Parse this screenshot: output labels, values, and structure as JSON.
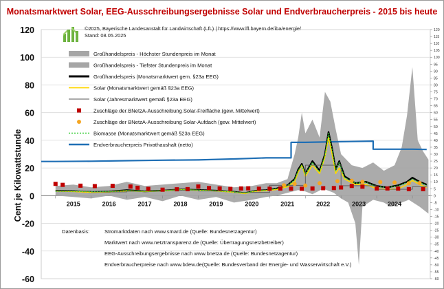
{
  "title": "Monatsmarktwert Solar, EEG-Ausschreibungsergebnisse Solar und Endverbraucherpreis - 2015 bis heute",
  "credit": {
    "line1": "©2025, Bayerische Landesanstalt für Landwirtschaft (LfL)  |  https://www.lfl.bayern.de/iba/energie/",
    "line2": "Stand: 08.05.2025"
  },
  "datenbasis": {
    "label": "Datenbasis:",
    "lines": [
      "Stromarktdaten nach www.smard.de (Quelle: Bundesnetzagentur)",
      "Marktwert nach www.netztransparenz.de (Quelle: Übertragungsnetzbetreiber)",
      "EEG-Ausschreibungsergebnisse nach www.bnetza.de (Quelle: Bundesnetzagentur)",
      "Endverbraucherpreise nach www.bdew.de(Quelle: Bundesverband der Energie- und Wasserwirtschaft e.V.)"
    ]
  },
  "colors": {
    "title": "#c00000",
    "band": "#a6a6a6",
    "grosshandel": "#000000",
    "solar": "#ffd700",
    "solar_jahr": "#555555",
    "freiflaeche": "#c00000",
    "aufdach": "#f5a623",
    "biomasse": "#33cc33",
    "endverbraucher": "#1f6fb5"
  },
  "chart_data": {
    "type": "line",
    "ylabel": "Cent je Kilowattstunde",
    "ylim": [
      -60,
      120
    ],
    "yticks": [
      "120",
      "100",
      "80",
      "60",
      "40",
      "20",
      "0",
      "-20",
      "-40",
      "-60"
    ],
    "yticks_right": [
      "120",
      "115",
      "110",
      "105",
      "100",
      "95",
      "90",
      "85",
      "80",
      "75",
      "70",
      "65",
      "60",
      "55",
      "50",
      "45",
      "40",
      "35",
      "30",
      "25",
      "20",
      "15",
      "10",
      "5",
      "0",
      "-5",
      "-10",
      "-15",
      "-20",
      "-25",
      "-30",
      "-35",
      "-40",
      "-45",
      "-50",
      "-55",
      "-60"
    ],
    "x_categories": [
      "2015",
      "2016",
      "2017",
      "2018",
      "2019",
      "2020",
      "2021",
      "2022",
      "2023",
      "2024"
    ],
    "xlim": [
      2014.6,
      2025.5
    ],
    "grid": true,
    "legend_position": "top-left",
    "legend": [
      "Großhandelspreis - Höchster Stundenpreis im Monat",
      "Großhandelspreis - Tiefster Stundenpreis im Monat",
      "Großhandelspreis (Monatsmarktwert gem. §23a EEG)",
      "Solar (Monatsmarktwert gemäß §23a EEG)",
      "Solar (Jahresmarktwert gemäß §23a EEG)",
      "Zuschläge der BNetzA-Ausschreibung Solar-Freifläche (gew. Mittelwert)",
      "Zuschläge der BNetzA-Ausschreibung Solar-Aufdach (gew. Mittelwert)",
      "Biomasse (Monatsmarktwert gemäß §23a EEG)",
      "Endverbraucherpreis Privathaushalt (netto)"
    ],
    "band_high": [
      [
        2015.0,
        7
      ],
      [
        2015.5,
        8
      ],
      [
        2016.0,
        6
      ],
      [
        2016.5,
        7
      ],
      [
        2017.0,
        10
      ],
      [
        2017.5,
        7
      ],
      [
        2018.0,
        8
      ],
      [
        2018.5,
        9
      ],
      [
        2019.0,
        10
      ],
      [
        2019.5,
        8
      ],
      [
        2020.0,
        6
      ],
      [
        2020.5,
        7
      ],
      [
        2020.9,
        9
      ],
      [
        2021.2,
        9
      ],
      [
        2021.5,
        12
      ],
      [
        2021.7,
        30
      ],
      [
        2021.8,
        42
      ],
      [
        2021.9,
        60
      ],
      [
        2022.0,
        45
      ],
      [
        2022.2,
        55
      ],
      [
        2022.4,
        42
      ],
      [
        2022.55,
        75
      ],
      [
        2022.7,
        68
      ],
      [
        2022.85,
        48
      ],
      [
        2023.0,
        30
      ],
      [
        2023.3,
        22
      ],
      [
        2023.6,
        20
      ],
      [
        2023.9,
        24
      ],
      [
        2024.2,
        18
      ],
      [
        2024.5,
        22
      ],
      [
        2024.7,
        35
      ],
      [
        2024.85,
        58
      ],
      [
        2025.0,
        93
      ],
      [
        2025.15,
        40
      ],
      [
        2025.3,
        32
      ],
      [
        2025.45,
        26
      ]
    ],
    "band_low": [
      [
        2015.0,
        0
      ],
      [
        2015.5,
        -1
      ],
      [
        2016.0,
        -2
      ],
      [
        2016.5,
        0
      ],
      [
        2017.0,
        -3
      ],
      [
        2017.5,
        -1
      ],
      [
        2018.0,
        -4
      ],
      [
        2018.5,
        0
      ],
      [
        2019.0,
        -3
      ],
      [
        2019.5,
        -1
      ],
      [
        2020.0,
        -5
      ],
      [
        2020.5,
        -3
      ],
      [
        2020.9,
        -1
      ],
      [
        2021.2,
        0
      ],
      [
        2021.5,
        2
      ],
      [
        2021.8,
        4
      ],
      [
        2022.0,
        3
      ],
      [
        2022.2,
        1
      ],
      [
        2022.5,
        5
      ],
      [
        2022.8,
        2
      ],
      [
        2023.0,
        -2
      ],
      [
        2023.2,
        -5
      ],
      [
        2023.4,
        -20
      ],
      [
        2023.5,
        -50
      ],
      [
        2023.6,
        -8
      ],
      [
        2023.9,
        -3
      ],
      [
        2024.2,
        -5
      ],
      [
        2024.4,
        -8
      ],
      [
        2024.6,
        -6
      ],
      [
        2024.9,
        -3
      ],
      [
        2025.2,
        -8
      ],
      [
        2025.45,
        -13
      ]
    ],
    "grosshandel": [
      [
        2015.0,
        3.5
      ],
      [
        2015.5,
        3.3
      ],
      [
        2016.0,
        2.6
      ],
      [
        2016.5,
        2.9
      ],
      [
        2017.0,
        4.0
      ],
      [
        2017.5,
        3.1
      ],
      [
        2018.0,
        3.6
      ],
      [
        2018.5,
        4.5
      ],
      [
        2019.0,
        4.1
      ],
      [
        2019.5,
        3.6
      ],
      [
        2020.0,
        2.8
      ],
      [
        2020.3,
        1.8
      ],
      [
        2020.6,
        3.5
      ],
      [
        2020.9,
        4.0
      ],
      [
        2021.2,
        5.2
      ],
      [
        2021.5,
        7.5
      ],
      [
        2021.7,
        12
      ],
      [
        2021.8,
        19
      ],
      [
        2021.9,
        23
      ],
      [
        2022.0,
        16
      ],
      [
        2022.2,
        25
      ],
      [
        2022.4,
        18
      ],
      [
        2022.55,
        30
      ],
      [
        2022.65,
        46
      ],
      [
        2022.75,
        34
      ],
      [
        2022.85,
        19
      ],
      [
        2022.95,
        25
      ],
      [
        2023.1,
        14
      ],
      [
        2023.4,
        9
      ],
      [
        2023.7,
        10
      ],
      [
        2024.0,
        7
      ],
      [
        2024.3,
        6
      ],
      [
        2024.6,
        7.5
      ],
      [
        2024.85,
        10
      ],
      [
        2025.0,
        13
      ],
      [
        2025.2,
        10
      ],
      [
        2025.4,
        8
      ]
    ],
    "solar": [
      [
        2015.0,
        3.3
      ],
      [
        2015.5,
        3.0
      ],
      [
        2016.0,
        2.4
      ],
      [
        2016.5,
        2.7
      ],
      [
        2017.0,
        3.5
      ],
      [
        2017.5,
        3.0
      ],
      [
        2018.0,
        3.4
      ],
      [
        2018.5,
        4.3
      ],
      [
        2019.0,
        3.8
      ],
      [
        2019.5,
        3.4
      ],
      [
        2020.0,
        2.5
      ],
      [
        2020.3,
        1.5
      ],
      [
        2020.6,
        3.2
      ],
      [
        2020.9,
        3.6
      ],
      [
        2021.2,
        4.5
      ],
      [
        2021.5,
        6.5
      ],
      [
        2021.7,
        10
      ],
      [
        2021.8,
        17
      ],
      [
        2021.9,
        22
      ],
      [
        2022.0,
        14
      ],
      [
        2022.2,
        22
      ],
      [
        2022.4,
        16
      ],
      [
        2022.55,
        28
      ],
      [
        2022.65,
        42
      ],
      [
        2022.75,
        30
      ],
      [
        2022.85,
        16
      ],
      [
        2022.95,
        20
      ],
      [
        2023.1,
        12
      ],
      [
        2023.4,
        8
      ],
      [
        2023.7,
        8
      ],
      [
        2024.0,
        5
      ],
      [
        2024.3,
        4.5
      ],
      [
        2024.6,
        5
      ],
      [
        2024.85,
        8
      ],
      [
        2025.0,
        11
      ],
      [
        2025.2,
        8
      ],
      [
        2025.4,
        6
      ]
    ],
    "solar_jahr": [
      [
        2015.0,
        3.3
      ],
      [
        2016.0,
        3.3
      ],
      [
        2016.0,
        2.7
      ],
      [
        2017.0,
        2.7
      ],
      [
        2017.0,
        3.2
      ],
      [
        2018.0,
        3.2
      ],
      [
        2018.0,
        4.0
      ],
      [
        2019.0,
        4.0
      ],
      [
        2019.0,
        3.4
      ],
      [
        2020.0,
        3.4
      ],
      [
        2020.0,
        2.3
      ],
      [
        2021.0,
        2.3
      ],
      [
        2021.0,
        7.5
      ],
      [
        2022.0,
        7.5
      ],
      [
        2022.0,
        22
      ],
      [
        2023.0,
        22
      ],
      [
        2023.0,
        7.2
      ],
      [
        2024.0,
        7.2
      ],
      [
        2024.0,
        4.6
      ],
      [
        2025.0,
        4.6
      ],
      [
        2025.0,
        6.5
      ],
      [
        2025.4,
        6.5
      ]
    ],
    "biomasse": [
      [
        2015.0,
        3.2
      ],
      [
        2015.5,
        3.2
      ],
      [
        2016.0,
        2.8
      ],
      [
        2016.5,
        2.9
      ],
      [
        2017.0,
        3.6
      ],
      [
        2017.5,
        3.1
      ],
      [
        2018.0,
        3.5
      ],
      [
        2018.5,
        4.4
      ],
      [
        2019.0,
        4.0
      ],
      [
        2019.5,
        3.5
      ],
      [
        2020.0,
        2.7
      ],
      [
        2020.3,
        1.9
      ],
      [
        2020.6,
        3.4
      ],
      [
        2020.9,
        3.9
      ],
      [
        2021.2,
        5.0
      ],
      [
        2021.5,
        7.2
      ],
      [
        2021.7,
        11.5
      ],
      [
        2021.8,
        18
      ],
      [
        2021.9,
        22
      ],
      [
        2022.0,
        15.5
      ],
      [
        2022.2,
        24
      ],
      [
        2022.4,
        17
      ],
      [
        2022.55,
        29
      ],
      [
        2022.65,
        45
      ],
      [
        2022.75,
        33
      ],
      [
        2022.85,
        18
      ],
      [
        2022.95,
        24
      ],
      [
        2023.1,
        13
      ],
      [
        2023.4,
        9
      ],
      [
        2023.7,
        9.5
      ],
      [
        2024.0,
        6.5
      ],
      [
        2024.3,
        6
      ],
      [
        2024.6,
        7
      ],
      [
        2024.85,
        9.5
      ],
      [
        2025.0,
        12
      ],
      [
        2025.2,
        9.5
      ],
      [
        2025.4,
        7.5
      ]
    ],
    "endverbraucher": [
      [
        2014.6,
        24.7
      ],
      [
        2015.0,
        24.7
      ],
      [
        2016.0,
        24.9
      ],
      [
        2017.0,
        25.3
      ],
      [
        2018.0,
        25.6
      ],
      [
        2019.0,
        25.8
      ],
      [
        2020.0,
        26.5
      ],
      [
        2020.9,
        27.3
      ],
      [
        2021.0,
        27.3
      ],
      [
        2021.6,
        27.3
      ],
      [
        2021.6,
        38.5
      ],
      [
        2022.0,
        38.5
      ],
      [
        2023.0,
        39.0
      ],
      [
        2023.9,
        39.4
      ],
      [
        2023.9,
        33.6
      ],
      [
        2024.0,
        33.6
      ],
      [
        2025.0,
        33.6
      ],
      [
        2025.4,
        33.4
      ]
    ],
    "freiflaeche": [
      [
        2015.0,
        8.5
      ],
      [
        2015.2,
        7.8
      ],
      [
        2015.7,
        7.2
      ],
      [
        2016.1,
        6.9
      ],
      [
        2016.6,
        7.1
      ],
      [
        2017.1,
        6.6
      ],
      [
        2017.3,
        5.7
      ],
      [
        2017.6,
        4.9
      ],
      [
        2018.0,
        4.3
      ],
      [
        2018.4,
        4.6
      ],
      [
        2018.7,
        4.7
      ],
      [
        2019.0,
        6.6
      ],
      [
        2019.3,
        5.5
      ],
      [
        2019.6,
        5.2
      ],
      [
        2019.9,
        4.9
      ],
      [
        2020.2,
        5.2
      ],
      [
        2020.4,
        5.3
      ],
      [
        2020.7,
        5.0
      ],
      [
        2021.0,
        5.0
      ],
      [
        2021.3,
        5.1
      ],
      [
        2021.6,
        5.1
      ],
      [
        2021.9,
        5.0
      ],
      [
        2022.2,
        5.2
      ],
      [
        2022.5,
        5.4
      ],
      [
        2022.8,
        5.5
      ],
      [
        2023.0,
        5.9
      ],
      [
        2023.3,
        7.0
      ],
      [
        2023.6,
        6.5
      ],
      [
        2024.0,
        5.2
      ],
      [
        2024.3,
        5.2
      ],
      [
        2024.6,
        5.1
      ],
      [
        2024.9,
        4.7
      ],
      [
        2025.3,
        4.7
      ]
    ],
    "aufdach": [
      [
        2021.4,
        7.5
      ],
      [
        2021.7,
        8.5
      ],
      [
        2022.0,
        7.3
      ],
      [
        2022.4,
        9.0
      ],
      [
        2022.9,
        10.5
      ],
      [
        2023.3,
        10.8
      ],
      [
        2023.6,
        10.0
      ],
      [
        2024.1,
        9.8
      ],
      [
        2024.5,
        9.5
      ],
      [
        2024.9,
        9.0
      ],
      [
        2025.2,
        9.1
      ]
    ]
  }
}
